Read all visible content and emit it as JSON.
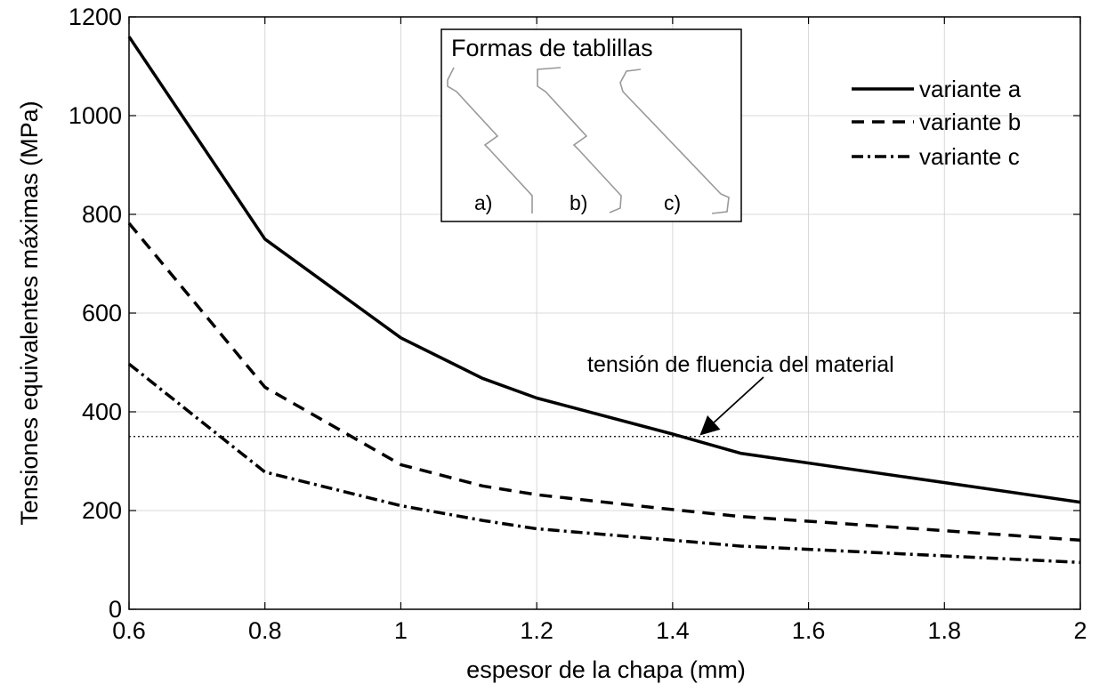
{
  "chart_data": {
    "type": "line",
    "title": "",
    "xlabel": "espesor de la chapa (mm)",
    "ylabel": "Tensiones equivalentes máximas (MPa)",
    "xlim": [
      0.6,
      2.0
    ],
    "ylim": [
      0,
      1200
    ],
    "xticks": [
      0.6,
      0.8,
      1.0,
      1.2,
      1.4,
      1.6,
      1.8,
      2.0
    ],
    "xtick_labels": [
      "0.6",
      "0.8",
      "1",
      "1.2",
      "1.4",
      "1.6",
      "1.8",
      "2"
    ],
    "yticks": [
      0,
      200,
      400,
      600,
      800,
      1000,
      1200
    ],
    "ytick_labels": [
      "0",
      "200",
      "400",
      "600",
      "800",
      "1000",
      "1200"
    ],
    "grid": true,
    "legend_position": "top-right",
    "series": [
      {
        "name": "variante a",
        "style": "solid",
        "x": [
          0.6,
          0.8,
          1.0,
          1.12,
          1.2,
          1.4,
          1.5,
          2.0
        ],
        "y": [
          1160,
          750,
          550,
          468,
          428,
          355,
          316,
          217
        ]
      },
      {
        "name": "variante b",
        "style": "dashed",
        "x": [
          0.6,
          0.8,
          1.0,
          1.12,
          1.2,
          1.4,
          1.5,
          2.0
        ],
        "y": [
          782,
          450,
          293,
          250,
          232,
          202,
          188,
          140
        ]
      },
      {
        "name": "variante c",
        "style": "dashdot",
        "x": [
          0.6,
          0.8,
          1.0,
          1.12,
          1.2,
          1.4,
          1.5,
          2.0
        ],
        "y": [
          497,
          278,
          210,
          180,
          163,
          140,
          128,
          95
        ]
      }
    ],
    "reference_line": {
      "y": 350,
      "style": "dotted",
      "label": "tensión de fluencia del material",
      "arrow_target": [
        1.44,
        350
      ]
    },
    "inset": {
      "title": "Formas de tablillas",
      "labels": [
        "a)",
        "b)",
        "c)"
      ]
    }
  }
}
